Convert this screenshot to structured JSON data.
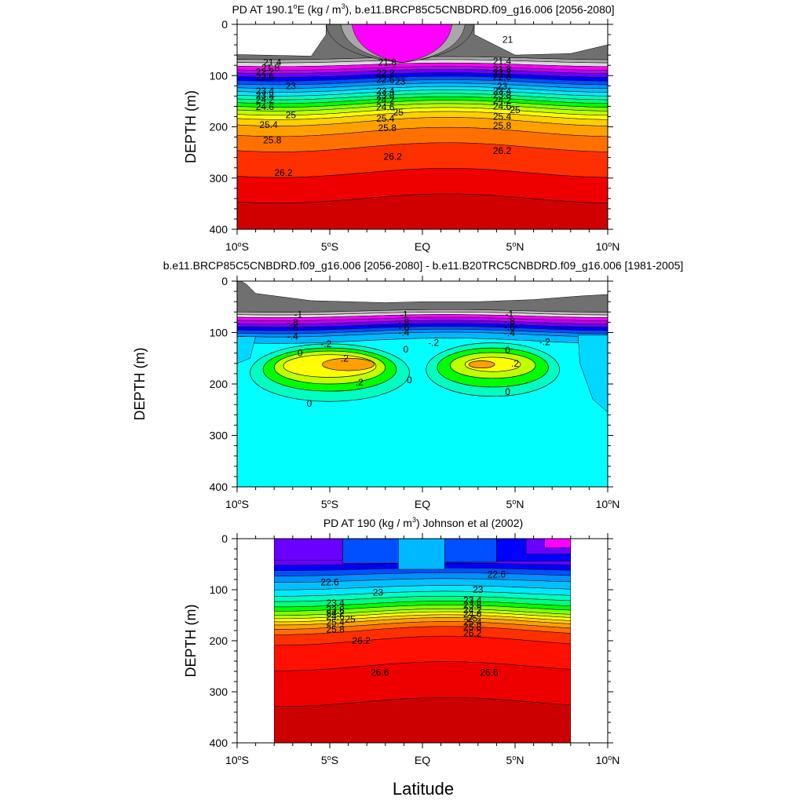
{
  "figure": {
    "xlabel": "Latitude"
  },
  "chart_data": [
    {
      "type": "heatmap",
      "title_parts": {
        "pre": "PD AT 190.1",
        "deg": "o",
        "mid": "E (kg / m",
        "sup": "3",
        "post": "), b.e11.BRCP85C5CNBDRD.f09_g16.006 [2056-2080]"
      },
      "ylabel": "DEPTH (m)",
      "x_range": [
        -10,
        10
      ],
      "y_range": [
        0,
        400
      ],
      "x_ticks": [
        -10,
        -5,
        0,
        5,
        10
      ],
      "x_tick_labels": [
        "10°S",
        "5°S",
        "EQ",
        "5°N",
        "10°N"
      ],
      "y_ticks": [
        0,
        100,
        200,
        300,
        400
      ],
      "y_tick_labels": [
        "0",
        "100",
        "200",
        "300",
        "400"
      ],
      "fill_x_range": [
        -10,
        10
      ],
      "surface_mask": [
        [
          -10,
          63
        ],
        [
          -6,
          68
        ],
        [
          -5,
          66
        ],
        [
          -2,
          62
        ],
        [
          0,
          61
        ],
        [
          2,
          62
        ],
        [
          5,
          67
        ],
        [
          8,
          63
        ],
        [
          10,
          44
        ]
      ],
      "pinch_columns": [
        {
          "x_range": [
            -5.2,
            2.8
          ],
          "color": "#707070"
        },
        {
          "x_range": [
            -4.4,
            2.3
          ],
          "color": "#a8a8a8"
        },
        {
          "x_range": [
            -3.8,
            1.6
          ],
          "color": "#ff00ff"
        }
      ],
      "levels": [
        {
          "depth": 66,
          "color": "#707070"
        },
        {
          "depth": 72,
          "color": "#a8a8a8"
        },
        {
          "depth": 79,
          "color": "#d8d8d8"
        },
        {
          "depth": 86,
          "color": "#ff00ff"
        },
        {
          "depth": 92,
          "color": "#c000ff"
        },
        {
          "depth": 99,
          "color": "#6a00ff"
        },
        {
          "depth": 106,
          "color": "#0000ff"
        },
        {
          "depth": 113,
          "color": "#0050ff"
        },
        {
          "depth": 120,
          "color": "#0090ff"
        },
        {
          "depth": 127,
          "color": "#00c0ff"
        },
        {
          "depth": 134,
          "color": "#00e8ff"
        },
        {
          "depth": 141,
          "color": "#00ffc0"
        },
        {
          "depth": 148,
          "color": "#00ff80"
        },
        {
          "depth": 155,
          "color": "#00ff00"
        },
        {
          "depth": 162,
          "color": "#80ff00"
        },
        {
          "depth": 170,
          "color": "#c0ff00"
        },
        {
          "depth": 178,
          "color": "#ffff00"
        },
        {
          "depth": 190,
          "color": "#ffd000"
        },
        {
          "depth": 210,
          "color": "#ffa000"
        },
        {
          "depth": 240,
          "color": "#ff7000"
        },
        {
          "depth": 290,
          "color": "#ff3000"
        },
        {
          "depth": 340,
          "color": "#ee0000"
        },
        {
          "depth": 400,
          "color": "#d00000"
        }
      ],
      "contour_labels": [
        {
          "text": "21.4",
          "x": -8.1,
          "y": 74
        },
        {
          "text": "21.8",
          "x": -8.2,
          "y": 85
        },
        {
          "text": "22.2",
          "x": -8.5,
          "y": 93
        },
        {
          "text": "22.6",
          "x": -8.5,
          "y": 103
        },
        {
          "text": "23",
          "x": -7.1,
          "y": 120
        },
        {
          "text": "23.4",
          "x": -8.5,
          "y": 130
        },
        {
          "text": "23.8",
          "x": -8.5,
          "y": 139
        },
        {
          "text": "24.2",
          "x": -8.5,
          "y": 147
        },
        {
          "text": "24.6",
          "x": -8.5,
          "y": 161
        },
        {
          "text": "25",
          "x": -7.1,
          "y": 177
        },
        {
          "text": "25.4",
          "x": -8.3,
          "y": 196
        },
        {
          "text": "25.8",
          "x": -8.1,
          "y": 226
        },
        {
          "text": "26.2",
          "x": -7.5,
          "y": 290
        },
        {
          "text": "21.8",
          "x": -1.9,
          "y": 74
        },
        {
          "text": "22.2",
          "x": -2.0,
          "y": 95
        },
        {
          "text": "22.6",
          "x": -2.0,
          "y": 108
        },
        {
          "text": "23",
          "x": -1.2,
          "y": 112
        },
        {
          "text": "23.4",
          "x": -2.0,
          "y": 130
        },
        {
          "text": "23.8",
          "x": -2.0,
          "y": 139
        },
        {
          "text": "24.2",
          "x": -2.0,
          "y": 148
        },
        {
          "text": "24.6",
          "x": -2.0,
          "y": 162
        },
        {
          "text": "25",
          "x": -1.3,
          "y": 172
        },
        {
          "text": "25.4",
          "x": -2.0,
          "y": 184
        },
        {
          "text": "25.8",
          "x": -1.9,
          "y": 202
        },
        {
          "text": "26.2",
          "x": -1.6,
          "y": 258
        },
        {
          "text": "21.4",
          "x": 4.3,
          "y": 72
        },
        {
          "text": "21.8",
          "x": 4.3,
          "y": 87
        },
        {
          "text": "22.2",
          "x": 4.3,
          "y": 94
        },
        {
          "text": "22.6",
          "x": 4.3,
          "y": 103
        },
        {
          "text": "23",
          "x": 4.3,
          "y": 121
        },
        {
          "text": "23.4",
          "x": 4.3,
          "y": 130
        },
        {
          "text": "23.8",
          "x": 4.3,
          "y": 138
        },
        {
          "text": "24.2",
          "x": 4.3,
          "y": 149
        },
        {
          "text": "24.6",
          "x": 4.3,
          "y": 160
        },
        {
          "text": "25",
          "x": 5.0,
          "y": 167
        },
        {
          "text": "25.4",
          "x": 4.3,
          "y": 180
        },
        {
          "text": "25.8",
          "x": 4.3,
          "y": 198
        },
        {
          "text": "26.2",
          "x": 4.3,
          "y": 247
        },
        {
          "text": "21",
          "x": 4.6,
          "y": 30
        }
      ]
    },
    {
      "type": "heatmap",
      "title": "b.e11.BRCP85C5CNBDRD.f09_g16.006 [2056-2080] - b.e11.B20TRC5CNBDRD.f09_g16.006 [1981-2005]",
      "ylabel": "DEPTH (m)",
      "x_range": [
        -10,
        10
      ],
      "y_range": [
        0,
        400
      ],
      "x_ticks": [
        -10,
        -5,
        0,
        5,
        10
      ],
      "x_tick_labels": [
        "10°S",
        "5°S",
        "EQ",
        "5°N",
        "10°N"
      ],
      "y_ticks": [
        0,
        100,
        200,
        300,
        400
      ],
      "y_tick_labels": [
        "0",
        "100",
        "200",
        "300",
        "400"
      ],
      "fill_x_range": [
        -10,
        10
      ],
      "surface_mask": [
        [
          -10,
          0
        ],
        [
          -9.5,
          10
        ],
        [
          -9,
          28
        ],
        [
          -6,
          42
        ],
        [
          -2,
          46
        ],
        [
          0,
          44
        ],
        [
          3,
          44
        ],
        [
          6,
          40
        ],
        [
          8.5,
          33
        ],
        [
          10,
          30
        ]
      ],
      "levels": [
        {
          "depth": 58,
          "color": "#707070"
        },
        {
          "depth": 63,
          "color": "#b4b4b4"
        },
        {
          "depth": 68,
          "color": "#e0e0e0"
        },
        {
          "depth": 74,
          "color": "#ff00ff"
        },
        {
          "depth": 80,
          "color": "#c000ff"
        },
        {
          "depth": 86,
          "color": "#6a00ff"
        },
        {
          "depth": 92,
          "color": "#0000ff"
        },
        {
          "depth": 98,
          "color": "#0050ff"
        },
        {
          "depth": 104,
          "color": "#0090ff"
        },
        {
          "depth": 116,
          "color": "#00b8ff"
        },
        {
          "depth": 400,
          "color": "#00ffff"
        }
      ],
      "side_patches": [
        {
          "points": [
            [
              8.4,
              105
            ],
            [
              10,
              105
            ],
            [
              10,
              255
            ],
            [
              9.2,
              230
            ],
            [
              8.5,
              160
            ]
          ],
          "color": "#00d8ff"
        },
        {
          "points": [
            [
              -10,
              108
            ],
            [
              -9.0,
              108
            ],
            [
              -9.3,
              150
            ],
            [
              -10,
              160
            ]
          ],
          "color": "#00d8ff"
        }
      ],
      "blobs": [
        {
          "cx": -5.0,
          "cy": 178,
          "rx": 4.3,
          "ry": 56,
          "color": "#00ffc0"
        },
        {
          "cx": 3.8,
          "cy": 172,
          "rx": 3.6,
          "ry": 52,
          "color": "#00ffc0"
        },
        {
          "cx": -5.0,
          "cy": 172,
          "rx": 3.6,
          "ry": 42,
          "color": "#00ff00"
        },
        {
          "cx": 3.8,
          "cy": 168,
          "rx": 3.0,
          "ry": 38,
          "color": "#00ff00"
        },
        {
          "cx": -5.0,
          "cy": 168,
          "rx": 3.0,
          "ry": 32,
          "color": "#c0ff00"
        },
        {
          "cx": 3.8,
          "cy": 164,
          "rx": 2.3,
          "ry": 25,
          "color": "#c0ff00"
        },
        {
          "cx": -5.0,
          "cy": 165,
          "rx": 2.5,
          "ry": 22,
          "color": "#ffff00"
        },
        {
          "cx": 3.8,
          "cy": 162,
          "rx": 1.5,
          "ry": 14,
          "color": "#ffff00"
        },
        {
          "cx": -4.0,
          "cy": 162,
          "rx": 1.4,
          "ry": 12,
          "color": "#ffa000"
        },
        {
          "cx": 3.2,
          "cy": 162,
          "rx": 0.7,
          "ry": 7,
          "color": "#ffa000"
        }
      ],
      "contour_labels": [
        {
          "text": "-1",
          "x": -6.7,
          "y": 65
        },
        {
          "text": "-.8",
          "x": -7.0,
          "y": 80
        },
        {
          "text": "-.6",
          "x": -7.0,
          "y": 90
        },
        {
          "text": "-.4",
          "x": -7.0,
          "y": 108
        },
        {
          "text": "-.2",
          "x": -5.2,
          "y": 122
        },
        {
          "text": "0",
          "x": -6.6,
          "y": 140
        },
        {
          "text": ".2",
          "x": -4.2,
          "y": 150
        },
        {
          "text": ".2",
          "x": -3.4,
          "y": 197
        },
        {
          "text": "0",
          "x": -6.1,
          "y": 238
        },
        {
          "text": "-1",
          "x": -1.0,
          "y": 65
        },
        {
          "text": "-.8",
          "x": -1.0,
          "y": 80
        },
        {
          "text": "-.6",
          "x": -1.0,
          "y": 90
        },
        {
          "text": "-.4",
          "x": -1.0,
          "y": 100
        },
        {
          "text": "-.2",
          "x": 0.6,
          "y": 120
        },
        {
          "text": "0",
          "x": -0.9,
          "y": 133
        },
        {
          "text": "0",
          "x": -0.7,
          "y": 192
        },
        {
          "text": "-1",
          "x": 4.7,
          "y": 64
        },
        {
          "text": "-.8",
          "x": 4.7,
          "y": 78
        },
        {
          "text": "-.6",
          "x": 4.7,
          "y": 89
        },
        {
          "text": "-.4",
          "x": 4.7,
          "y": 101
        },
        {
          "text": "-.2",
          "x": 6.6,
          "y": 118
        },
        {
          "text": "0",
          "x": 4.6,
          "y": 134
        },
        {
          "text": ".2",
          "x": 5.0,
          "y": 160
        },
        {
          "text": "0",
          "x": 4.6,
          "y": 215
        }
      ]
    },
    {
      "type": "heatmap",
      "title_parts": {
        "pre": "PD AT 190 (kg / m",
        "sup": "3",
        "post": ") Johnson et al (2002)"
      },
      "ylabel": "DEPTH (m)",
      "x_range": [
        -10,
        10
      ],
      "y_range": [
        0,
        400
      ],
      "x_ticks": [
        -10,
        -5,
        0,
        5,
        10
      ],
      "x_tick_labels": [
        "10°S",
        "5°S",
        "EQ",
        "5°N",
        "10°N"
      ],
      "y_ticks": [
        0,
        100,
        200,
        300,
        400
      ],
      "y_tick_labels": [
        "0",
        "100",
        "200",
        "300",
        "400"
      ],
      "fill_x_range": [
        -8,
        8
      ],
      "surface_mask": [
        [
          -8,
          5
        ],
        [
          8,
          5
        ]
      ],
      "levels": [
        {
          "depth": 50,
          "color": "#6a00ff"
        },
        {
          "depth": 60,
          "color": "#0000ff"
        },
        {
          "depth": 70,
          "color": "#0050ff"
        },
        {
          "depth": 82,
          "color": "#0090ff"
        },
        {
          "depth": 96,
          "color": "#00c0ff"
        },
        {
          "depth": 108,
          "color": "#00e8ff"
        },
        {
          "depth": 118,
          "color": "#00ffc0"
        },
        {
          "depth": 128,
          "color": "#00ff80"
        },
        {
          "depth": 136,
          "color": "#00ff00"
        },
        {
          "depth": 144,
          "color": "#80ff00"
        },
        {
          "depth": 150,
          "color": "#c0ff00"
        },
        {
          "depth": 156,
          "color": "#ffff00"
        },
        {
          "depth": 162,
          "color": "#ffd000"
        },
        {
          "depth": 170,
          "color": "#ffa000"
        },
        {
          "depth": 180,
          "color": "#ff7000"
        },
        {
          "depth": 200,
          "color": "#ff3000"
        },
        {
          "depth": 250,
          "color": "#ff1000"
        },
        {
          "depth": 320,
          "color": "#ee0000"
        },
        {
          "depth": 400,
          "color": "#cc0000"
        }
      ],
      "top_patches": [
        {
          "x_range": [
            -8,
            -4.3
          ],
          "bottom": 42,
          "color": "#6a00ff"
        },
        {
          "x_range": [
            -4.3,
            -1.3
          ],
          "bottom": 48,
          "color": "#0050ff"
        },
        {
          "x_range": [
            -1.3,
            1.2
          ],
          "bottom": 60,
          "color": "#00b8ff"
        },
        {
          "x_range": [
            1.2,
            4.0
          ],
          "bottom": 46,
          "color": "#0050ff"
        },
        {
          "x_range": [
            4.0,
            8
          ],
          "bottom": 44,
          "color": "#0000ff"
        },
        {
          "x_range": [
            5.6,
            8
          ],
          "bottom": 30,
          "color": "#6a00ff"
        },
        {
          "x_range": [
            6.6,
            8
          ],
          "bottom": 18,
          "color": "#ff00ff"
        }
      ],
      "contour_labels": [
        {
          "text": "22.6",
          "x": -5.0,
          "y": 85
        },
        {
          "text": "23",
          "x": -2.4,
          "y": 105
        },
        {
          "text": "23.4",
          "x": -4.7,
          "y": 126
        },
        {
          "text": "23.8",
          "x": -4.7,
          "y": 139
        },
        {
          "text": "24.2",
          "x": -4.7,
          "y": 146
        },
        {
          "text": "24.6",
          "x": -4.7,
          "y": 152
        },
        {
          "text": "25",
          "x": -3.9,
          "y": 158
        },
        {
          "text": "25.4",
          "x": -4.7,
          "y": 164
        },
        {
          "text": "25.8",
          "x": -4.7,
          "y": 178
        },
        {
          "text": "26.2",
          "x": -3.3,
          "y": 200
        },
        {
          "text": "26.6",
          "x": -2.3,
          "y": 262
        },
        {
          "text": "22.6",
          "x": 4.0,
          "y": 70
        },
        {
          "text": "23",
          "x": 3.0,
          "y": 100
        },
        {
          "text": "23.4",
          "x": 2.7,
          "y": 121
        },
        {
          "text": "23.8",
          "x": 2.7,
          "y": 130
        },
        {
          "text": "24.2",
          "x": 2.7,
          "y": 140
        },
        {
          "text": "24.6",
          "x": 2.7,
          "y": 148
        },
        {
          "text": "25",
          "x": 2.7,
          "y": 156
        },
        {
          "text": "25.4",
          "x": 2.7,
          "y": 164
        },
        {
          "text": "25.8",
          "x": 2.7,
          "y": 173
        },
        {
          "text": "26.2",
          "x": 2.7,
          "y": 185
        },
        {
          "text": "26.6",
          "x": 3.6,
          "y": 262
        }
      ]
    }
  ]
}
